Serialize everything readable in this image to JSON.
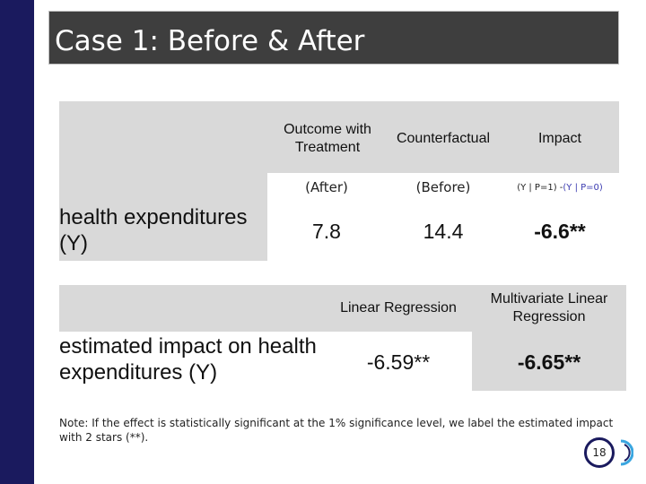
{
  "slide": {
    "title": "Case 1: Before & After",
    "page_number": "18"
  },
  "table1": {
    "headers": [
      "Outcome with Treatment",
      "Counterfactual",
      "Impact"
    ],
    "subheaders": {
      "after": "(After)",
      "before": "(Before)",
      "impact_formula_part1": "(Y | P=1) - ",
      "impact_formula_part2": "(Y | P=0)"
    },
    "row_label": "health expenditures (Y)",
    "values": [
      "7.8",
      "14.4",
      "-6.6**"
    ]
  },
  "table2": {
    "headers": [
      "Linear Regression",
      "Multivariate Linear Regression"
    ],
    "row_label": "estimated impact on health expenditures (Y)",
    "values": [
      "-6.59**",
      "-6.65**"
    ]
  },
  "note": "Note: If the effect is statistically significant at the 1% significance level, we label the estimated impact with 2 stars (**).",
  "colors": {
    "sidebar": "#1a1a5e",
    "title_bar": "#3e3e3e",
    "cell_grey": "#d9d9d9",
    "formula_accent": "#3a3ab0"
  }
}
